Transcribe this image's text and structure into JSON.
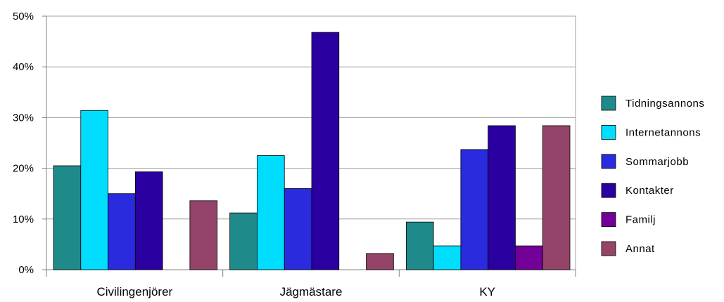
{
  "chart_data": {
    "type": "bar",
    "categories": [
      "Civilingenjörer",
      "Jägmästare",
      "KY"
    ],
    "series": [
      {
        "name": "Tidningsannons",
        "color": "#1f8a8a",
        "values": [
          20.5,
          11.2,
          9.4
        ]
      },
      {
        "name": "Internetannons",
        "color": "#00ddff",
        "values": [
          31.4,
          22.5,
          4.7
        ]
      },
      {
        "name": "Sommarjobb",
        "color": "#2a2adf",
        "values": [
          15.0,
          16.0,
          23.7
        ]
      },
      {
        "name": "Kontakter",
        "color": "#2a00a0",
        "values": [
          19.3,
          46.8,
          28.4
        ]
      },
      {
        "name": "Familj",
        "color": "#720099",
        "values": [
          0,
          0,
          4.7
        ]
      },
      {
        "name": "Annat",
        "color": "#934468",
        "values": [
          13.6,
          3.2,
          28.4
        ]
      }
    ],
    "y_ticks": [
      "0%",
      "10%",
      "20%",
      "30%",
      "40%",
      "50%"
    ],
    "ylim": [
      0,
      50
    ],
    "grid": true,
    "legend": "right"
  }
}
